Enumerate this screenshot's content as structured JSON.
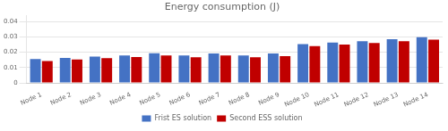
{
  "chart_data": {
    "type": "bar",
    "title": "Energy consumption (J)",
    "categories": [
      "Node 1",
      "Node 2",
      "Node 3",
      "Node 4",
      "Node 5",
      "Node 6",
      "Node 7",
      "Node 8",
      "Node 9",
      "Node 10",
      "Node 11",
      "Node 12",
      "Node 13",
      "Node 14"
    ],
    "series": [
      {
        "name": "Frist ES solution",
        "color": "#4472C4",
        "values": [
          0.0155,
          0.0163,
          0.0172,
          0.0178,
          0.0193,
          0.0178,
          0.0192,
          0.0178,
          0.0192,
          0.0252,
          0.0263,
          0.0272,
          0.0285,
          0.0298
        ]
      },
      {
        "name": "Second ESS solution",
        "color": "#C00000",
        "values": [
          0.0143,
          0.0153,
          0.0162,
          0.0168,
          0.0178,
          0.0167,
          0.0178,
          0.0167,
          0.0175,
          0.024,
          0.025,
          0.026,
          0.0272,
          0.0282
        ]
      }
    ],
    "ylim": [
      0,
      0.044
    ],
    "yticks": [
      0,
      0.01,
      0.02,
      0.03,
      0.04
    ],
    "grid": true,
    "legend": "bottom"
  }
}
